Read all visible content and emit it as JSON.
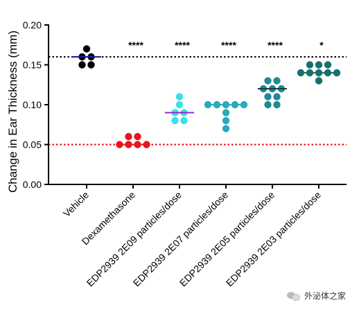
{
  "chart_data": {
    "type": "scatter",
    "ylabel": "Change in Ear Thickness (mm)",
    "xlabel": "",
    "ylim": [
      0,
      0.2
    ],
    "yticks": [
      "0.00",
      "0.05",
      "0.10",
      "0.15",
      "0.20"
    ],
    "grid": false,
    "legend": "none",
    "reference_lines": [
      {
        "y": 0.16,
        "color": "#000000",
        "style": "dotted"
      },
      {
        "y": 0.05,
        "color": "#e00000",
        "style": "dotted"
      }
    ],
    "groups": [
      {
        "label": "Vehicle",
        "color": "#000000",
        "median_color": "#1a1aa6",
        "median": 0.16,
        "significance": "",
        "points": [
          0.17,
          0.16,
          0.16,
          0.15,
          0.15
        ]
      },
      {
        "label": "Dexamethasone",
        "color": "#e8141e",
        "median_color": "#e8141e",
        "median": 0.05,
        "significance": "****",
        "points": [
          0.06,
          0.06,
          0.05,
          0.05,
          0.05,
          0.05
        ]
      },
      {
        "label": "EDP2939 2E09 particles/dose",
        "color": "#38e0e8",
        "median_color": "#a020c8",
        "median": 0.09,
        "significance": "****",
        "points": [
          0.11,
          0.1,
          0.09,
          0.09,
          0.08,
          0.08
        ]
      },
      {
        "label": "EDP2939 2E07 particles/dose",
        "color": "#26aabd",
        "median_color": "#26aabd",
        "median": 0.1,
        "significance": "****",
        "points": [
          0.1,
          0.1,
          0.1,
          0.1,
          0.1,
          0.09,
          0.08,
          0.07
        ]
      },
      {
        "label": "EDP2939 2E05 particles/dose",
        "color": "#1e8a94",
        "median_color": "#1a3a40",
        "median": 0.12,
        "significance": "****",
        "points": [
          0.13,
          0.13,
          0.12,
          0.12,
          0.12,
          0.11,
          0.11,
          0.1,
          0.1
        ]
      },
      {
        "label": "EDP2939 2E03 particles/dose",
        "color": "#16706e",
        "median_color": "#16706e",
        "median": 0.14,
        "significance": "*",
        "points": [
          0.15,
          0.15,
          0.15,
          0.14,
          0.14,
          0.14,
          0.14,
          0.14,
          0.13
        ]
      }
    ]
  },
  "watermark": {
    "text": "外泌体之家",
    "icon": "wechat-icon"
  }
}
